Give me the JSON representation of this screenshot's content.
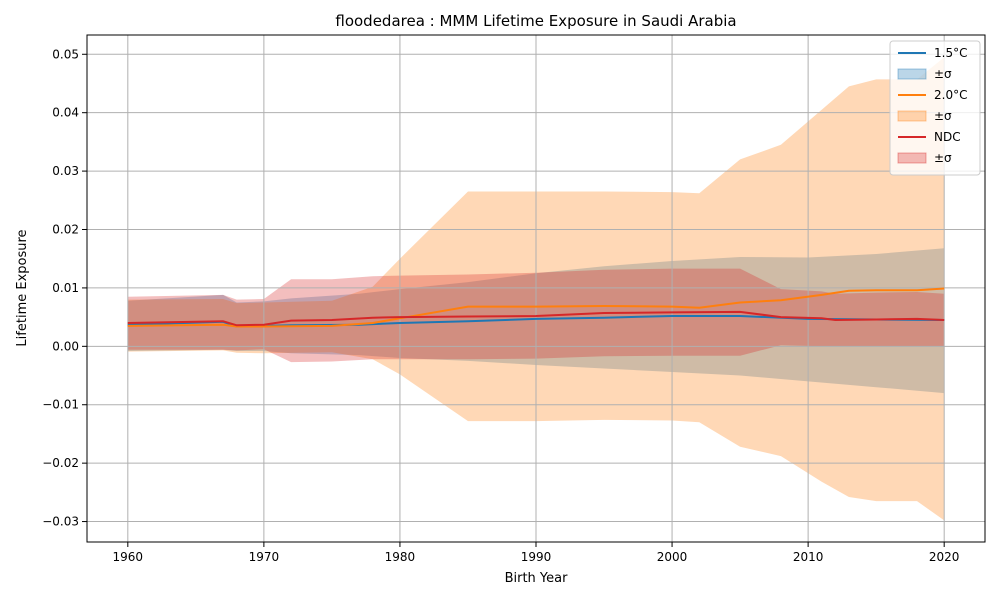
{
  "chart_data": {
    "type": "line",
    "title": "floodedarea : MMM Lifetime Exposure in Saudi Arabia",
    "xlabel": "Birth Year",
    "ylabel": "Lifetime Exposure",
    "xlim": [
      1957,
      2023
    ],
    "ylim": [
      -0.0335,
      0.0533
    ],
    "xticks": [
      1960,
      1970,
      1980,
      1990,
      2000,
      2010,
      2020
    ],
    "yticks": [
      -0.03,
      -0.02,
      -0.01,
      0.0,
      0.01,
      0.02,
      0.03,
      0.04,
      0.05
    ],
    "ytick_labels": [
      "−0.03",
      "−0.02",
      "−0.01",
      "0.00",
      "0.01",
      "0.02",
      "0.03",
      "0.04",
      "0.05"
    ],
    "grid": true,
    "legend_position": "top-right",
    "series": [
      {
        "name": "1.5°C",
        "band_label": "±σ",
        "color": "#1f77b4",
        "fill": "#1f77b4",
        "fill_opacity": 0.3,
        "x": [
          1960,
          1967,
          1968,
          1970,
          1972,
          1977,
          1980,
          1985,
          1990,
          1995,
          2000,
          2005,
          2010,
          2015,
          2020
        ],
        "y": [
          0.0037,
          0.0042,
          0.0034,
          0.0035,
          0.0036,
          0.0037,
          0.004,
          0.0043,
          0.0047,
          0.0049,
          0.0052,
          0.0052,
          0.0047,
          0.0046,
          0.0045
        ],
        "lower": [
          -0.0008,
          -0.0006,
          -0.0008,
          -0.0008,
          -0.0012,
          -0.0015,
          -0.002,
          -0.0025,
          -0.0032,
          -0.0038,
          -0.0044,
          -0.005,
          -0.006,
          -0.007,
          -0.008
        ],
        "upper": [
          0.0078,
          0.0088,
          0.0075,
          0.0077,
          0.0082,
          0.009,
          0.0098,
          0.011,
          0.0125,
          0.0137,
          0.0146,
          0.0153,
          0.0152,
          0.0158,
          0.0168
        ]
      },
      {
        "name": "2.0°C",
        "band_label": "±σ",
        "color": "#ff7f0e",
        "fill": "#ff7f0e",
        "fill_opacity": 0.3,
        "x": [
          1960,
          1967,
          1968,
          1970,
          1975,
          1978,
          1980,
          1985,
          1990,
          1995,
          2000,
          2002,
          2005,
          2008,
          2011,
          2013,
          2015,
          2018,
          2020
        ],
        "y": [
          0.0035,
          0.0037,
          0.0034,
          0.0034,
          0.0035,
          0.004,
          0.0048,
          0.0068,
          0.0068,
          0.0069,
          0.0068,
          0.0066,
          0.0075,
          0.0079,
          0.0088,
          0.0095,
          0.0096,
          0.0096,
          0.0099
        ],
        "lower": [
          -0.0009,
          -0.0007,
          -0.0011,
          -0.0012,
          -0.001,
          -0.0022,
          -0.0048,
          -0.0128,
          -0.0128,
          -0.0126,
          -0.0127,
          -0.013,
          -0.0172,
          -0.0188,
          -0.0232,
          -0.0258,
          -0.0265,
          -0.0265,
          -0.0298
        ],
        "upper": [
          0.008,
          0.0081,
          0.0074,
          0.0075,
          0.0078,
          0.0102,
          0.015,
          0.0265,
          0.0265,
          0.0265,
          0.0264,
          0.0262,
          0.032,
          0.0345,
          0.0405,
          0.0445,
          0.0457,
          0.0457,
          0.0495
        ]
      },
      {
        "name": "NDC",
        "band_label": "±σ",
        "color": "#d62728",
        "fill": "#d62728",
        "fill_opacity": 0.3,
        "x": [
          1960,
          1967,
          1968,
          1970,
          1972,
          1975,
          1978,
          1980,
          1985,
          1990,
          1995,
          2000,
          2005,
          2008,
          2011,
          2012,
          2015,
          2018,
          2020
        ],
        "y": [
          0.004,
          0.0043,
          0.0036,
          0.0037,
          0.0044,
          0.0045,
          0.0049,
          0.005,
          0.0051,
          0.0052,
          0.0057,
          0.0058,
          0.0059,
          0.005,
          0.0048,
          0.0045,
          0.0046,
          0.0047,
          0.0045
        ],
        "lower": [
          -0.0006,
          -0.0006,
          -0.0007,
          -0.0005,
          -0.0027,
          -0.0026,
          -0.0022,
          -0.0022,
          -0.0022,
          -0.0021,
          -0.0017,
          -0.0016,
          -0.0016,
          0.0002,
          0.0,
          0.0,
          0.0,
          0.0,
          0.0
        ],
        "upper": [
          0.0085,
          0.0088,
          0.008,
          0.0081,
          0.0115,
          0.0115,
          0.012,
          0.0121,
          0.0123,
          0.0126,
          0.0131,
          0.0133,
          0.0133,
          0.0098,
          0.0094,
          0.009,
          0.0092,
          0.0093,
          0.009
        ]
      }
    ]
  }
}
